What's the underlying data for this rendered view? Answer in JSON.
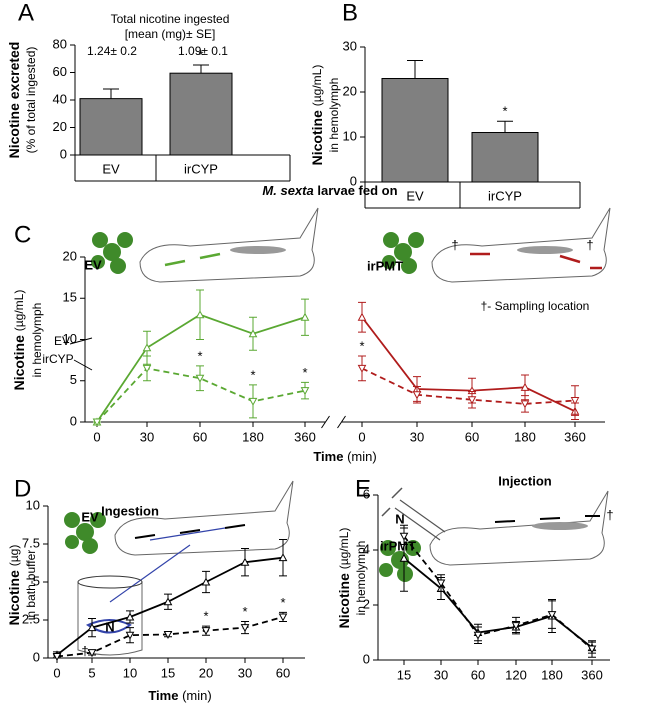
{
  "group_label_italic": "M. sexta",
  "group_label": "larvae fed on",
  "chart_data": [
    {
      "type": "bar",
      "panel": "A",
      "ylabel": "Nicotine excreted",
      "ylabel2": "(% of total ingested)",
      "categories": [
        "EV",
        "irCYP"
      ],
      "values": [
        41,
        59.5
      ],
      "errors": [
        7,
        6
      ],
      "color": "#808080",
      "ylim": [
        0,
        80
      ],
      "yticks": [
        0,
        20,
        40,
        60,
        80
      ],
      "annotations": [
        "Total nicotine ingested",
        "[mean (mg)± SE]",
        "1.24± 0.2",
        "1.09± 0.1"
      ],
      "significance": [
        {
          "index": 1,
          "label": "*"
        }
      ]
    },
    {
      "type": "bar",
      "panel": "B",
      "ylabel": "Nicotine",
      "ylabel_unit": "(µg/mL)",
      "ylabel2": "in hemolymph",
      "categories": [
        "EV",
        "irCYP"
      ],
      "values": [
        23,
        11
      ],
      "errors": [
        4,
        2.5
      ],
      "color": "#808080",
      "ylim": [
        0,
        30
      ],
      "yticks": [
        0,
        10,
        20,
        30
      ],
      "significance": [
        {
          "index": 1,
          "label": "*"
        }
      ]
    },
    {
      "type": "line",
      "panel": "C",
      "ylabel": "Nicotine",
      "ylabel_unit": "(µg/mL)",
      "ylabel2": "in hemolymph",
      "xlabel": "Time",
      "xlabel_unit": "(min)",
      "axis_break_after": 4,
      "categories": [
        "0",
        "30",
        "60",
        "180",
        "360",
        "0",
        "30",
        "60",
        "180",
        "360"
      ],
      "ylim": [
        0,
        20
      ],
      "yticks": [
        0,
        5,
        10,
        15,
        20
      ],
      "series": [
        {
          "name": "EV",
          "color": "#5aa832",
          "dashed": false,
          "values": [
            0,
            9,
            13,
            10.7,
            12.7,
            null,
            null,
            null,
            null,
            null
          ],
          "errors": [
            0,
            2,
            3,
            2,
            2.2,
            null,
            null,
            null,
            null,
            null
          ]
        },
        {
          "name": "irCYP",
          "color": "#5aa832",
          "dashed": true,
          "values": [
            0,
            6.5,
            5.3,
            2.5,
            3.8,
            null,
            null,
            null,
            null,
            null
          ],
          "errors": [
            0,
            1.5,
            1.5,
            2,
            1,
            null,
            null,
            null,
            null,
            null
          ],
          "significance": [
            {
              "index": 2,
              "label": "*"
            },
            {
              "index": 3,
              "label": "*"
            },
            {
              "index": 4,
              "label": "*"
            }
          ]
        },
        {
          "color": "#b01c1c",
          "dashed": false,
          "values": [
            null,
            null,
            null,
            null,
            null,
            12.7,
            4,
            3.8,
            4.2,
            1.3
          ],
          "errors": [
            null,
            null,
            null,
            null,
            null,
            1.8,
            1.5,
            1.5,
            1.5,
            1
          ]
        },
        {
          "color": "#b01c1c",
          "dashed": true,
          "values": [
            null,
            null,
            null,
            null,
            null,
            6.5,
            3.3,
            2.7,
            2.2,
            2.6
          ],
          "errors": [
            null,
            null,
            null,
            null,
            null,
            1.5,
            1,
            1,
            1,
            1.8
          ],
          "significance": [
            {
              "index": 5,
              "label": "*"
            }
          ]
        }
      ],
      "annotations": [
        "EV",
        "irPMT",
        "†",
        "†",
        "†- Sampling location"
      ]
    },
    {
      "type": "line",
      "panel": "D",
      "ylabel": "Nicotine",
      "ylabel_unit": "(µg)",
      "ylabel2": "in bath-buffer",
      "xlabel": "Time",
      "xlabel_unit": "(min)",
      "categories": [
        "0",
        "5",
        "10",
        "15",
        "20",
        "30",
        "60"
      ],
      "ylim": [
        0,
        10
      ],
      "yticks": [
        0,
        2.5,
        5,
        7.5,
        10
      ],
      "series": [
        {
          "color": "#000000",
          "dashed": false,
          "values": [
            0.2,
            2,
            2.7,
            3.7,
            5,
            6.3,
            6.6
          ],
          "errors": [
            0.2,
            0.6,
            0.4,
            0.5,
            0.7,
            0.9,
            1.2
          ]
        },
        {
          "color": "#000000",
          "dashed": true,
          "values": [
            0.1,
            0.35,
            1.5,
            1.55,
            1.8,
            2,
            2.7
          ],
          "errors": [
            0.1,
            0.15,
            0.5,
            0.15,
            0.3,
            0.4,
            0.3
          ],
          "significance": [
            {
              "index": 4,
              "label": "*"
            },
            {
              "index": 5,
              "label": "*"
            },
            {
              "index": 6,
              "label": "*"
            }
          ]
        }
      ],
      "annotations": [
        "EV",
        "Ingestion",
        "N",
        "†"
      ]
    },
    {
      "type": "line",
      "panel": "E",
      "ylabel": "Nicotine",
      "ylabel_unit": "(µg/mL)",
      "ylabel2": "in hemolymph",
      "categories": [
        "15",
        "30",
        "60",
        "120",
        "180",
        "360"
      ],
      "ylim": [
        0,
        6
      ],
      "yticks": [
        0,
        2,
        4,
        6
      ],
      "series": [
        {
          "color": "#000000",
          "dashed": false,
          "values": [
            3.7,
            2.6,
            1.0,
            1.2,
            1.6,
            0.45
          ],
          "errors": [
            1.2,
            0.4,
            0.3,
            0.2,
            0.6,
            0.2
          ]
        },
        {
          "color": "#000000",
          "dashed": true,
          "values": [
            4.5,
            2.8,
            0.9,
            1.25,
            1.65,
            0.4
          ],
          "errors": [
            0.3,
            0.3,
            0.3,
            0.3,
            0.5,
            0.3
          ]
        }
      ],
      "annotations": [
        "irPMT",
        "Injection",
        "N",
        "†"
      ]
    }
  ]
}
